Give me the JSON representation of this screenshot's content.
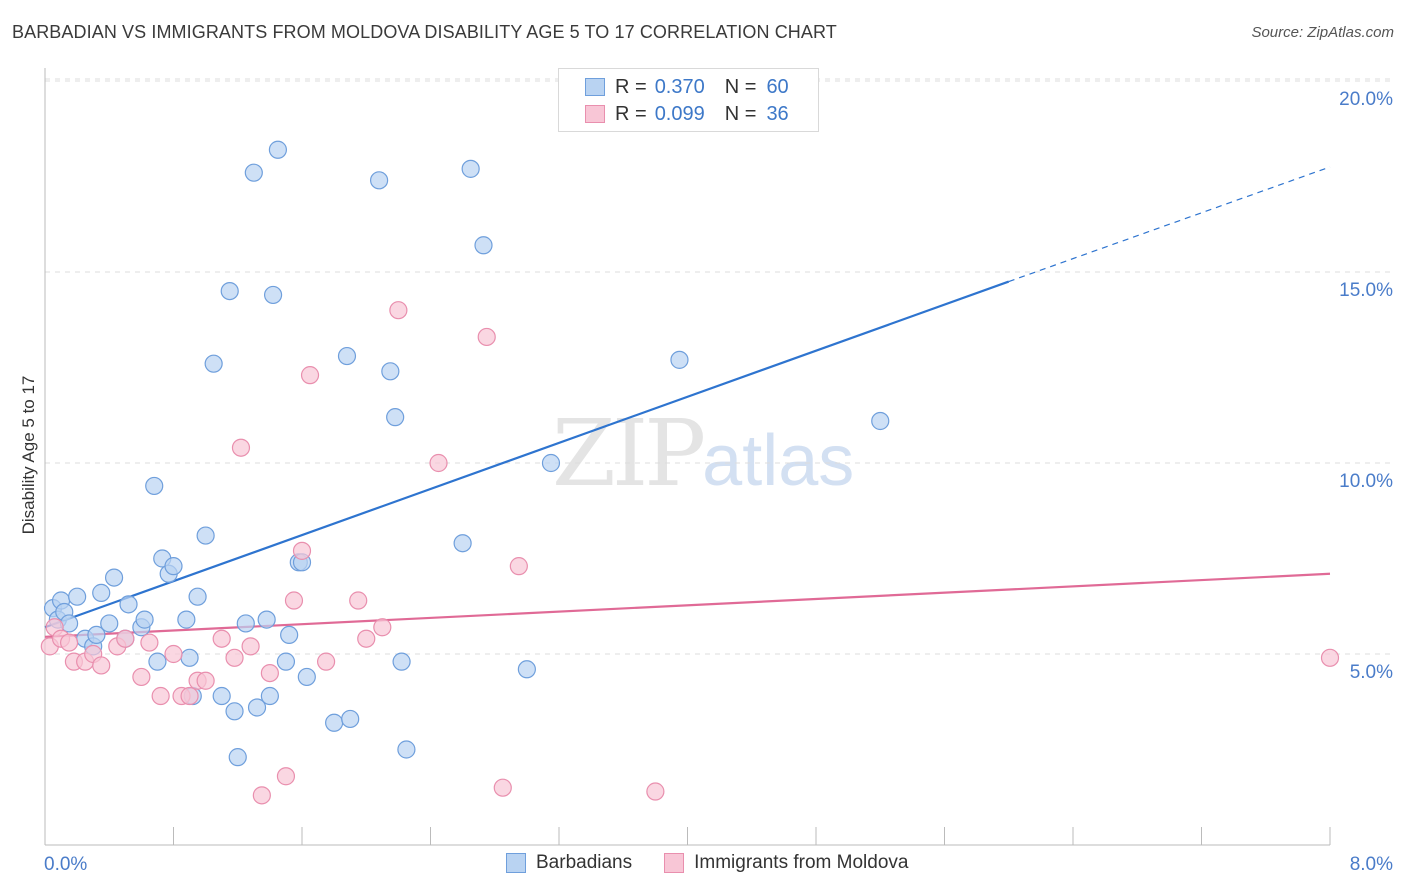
{
  "header": {
    "title": "BARBADIAN VS IMMIGRANTS FROM MOLDOVA DISABILITY AGE 5 TO 17 CORRELATION CHART",
    "source": "Source: ZipAtlas.com"
  },
  "watermark": {
    "zip": "ZIP",
    "atlas": "atlas"
  },
  "legend": {
    "rows": [
      {
        "r_label": "R =",
        "r_value": "0.370",
        "n_label": "N =",
        "n_value": "60"
      },
      {
        "r_label": "R =",
        "r_value": "0.099",
        "n_label": "N =",
        "n_value": "36"
      }
    ]
  },
  "bottom_legend": {
    "series1": "Barbadians",
    "series2": "Immigrants from Moldova"
  },
  "colors": {
    "blue_fill": "#b9d3f2",
    "blue_stroke": "#6f9fdc",
    "blue_line": "#2e74cf",
    "pink_fill": "#f8c6d6",
    "pink_stroke": "#e98fae",
    "pink_line": "#e06a96",
    "grid": "#dcdcdc",
    "tick_label": "#4a7cc9"
  },
  "chart_data": {
    "type": "scatter",
    "title": "BARBADIAN VS IMMIGRANTS FROM MOLDOVA DISABILITY AGE 5 TO 17 CORRELATION CHART",
    "xlabel": "",
    "ylabel": "Disability Age 5 to 17",
    "xlim": [
      0,
      8
    ],
    "ylim": [
      0,
      20
    ],
    "x_tick_labels": [
      "0.0%",
      "8.0%"
    ],
    "y_ticks": [
      5,
      10,
      15,
      20
    ],
    "y_tick_labels": [
      "5.0%",
      "10.0%",
      "15.0%",
      "20.0%"
    ],
    "grid": true,
    "legend_position": "top-center",
    "series": [
      {
        "name": "Barbadians",
        "r": 0.37,
        "n": 60,
        "trend": {
          "x0": 0.0,
          "y0": 5.7,
          "x1": 6.0,
          "y1": 14.75,
          "dash_to_x": 8.0,
          "dash_to_y": 17.75
        },
        "points": [
          [
            0.05,
            6.2
          ],
          [
            0.08,
            5.9
          ],
          [
            0.1,
            6.4
          ],
          [
            0.12,
            6.1
          ],
          [
            0.15,
            5.8
          ],
          [
            0.2,
            6.5
          ],
          [
            0.25,
            5.4
          ],
          [
            0.3,
            5.2
          ],
          [
            0.32,
            5.5
          ],
          [
            0.35,
            6.6
          ],
          [
            0.4,
            5.8
          ],
          [
            0.43,
            7.0
          ],
          [
            0.5,
            5.4
          ],
          [
            0.52,
            6.3
          ],
          [
            0.6,
            5.7
          ],
          [
            0.62,
            5.9
          ],
          [
            0.68,
            9.4
          ],
          [
            0.7,
            4.8
          ],
          [
            0.73,
            7.5
          ],
          [
            0.77,
            7.1
          ],
          [
            0.8,
            7.3
          ],
          [
            0.88,
            5.9
          ],
          [
            0.9,
            4.9
          ],
          [
            0.92,
            3.9
          ],
          [
            0.95,
            6.5
          ],
          [
            1.0,
            8.1
          ],
          [
            1.05,
            12.6
          ],
          [
            1.1,
            3.9
          ],
          [
            1.15,
            14.5
          ],
          [
            1.18,
            3.5
          ],
          [
            1.2,
            2.3
          ],
          [
            1.25,
            5.8
          ],
          [
            1.3,
            17.6
          ],
          [
            1.32,
            3.6
          ],
          [
            1.38,
            5.9
          ],
          [
            1.4,
            3.9
          ],
          [
            1.42,
            14.4
          ],
          [
            1.45,
            18.2
          ],
          [
            1.5,
            4.8
          ],
          [
            1.52,
            5.5
          ],
          [
            1.58,
            7.4
          ],
          [
            1.6,
            7.4
          ],
          [
            1.63,
            4.4
          ],
          [
            1.8,
            3.2
          ],
          [
            1.9,
            3.3
          ],
          [
            1.88,
            12.8
          ],
          [
            2.08,
            17.4
          ],
          [
            2.15,
            12.4
          ],
          [
            2.18,
            11.2
          ],
          [
            2.22,
            4.8
          ],
          [
            2.25,
            2.5
          ],
          [
            2.6,
            7.9
          ],
          [
            2.65,
            17.7
          ],
          [
            2.73,
            15.7
          ],
          [
            3.0,
            4.6
          ],
          [
            3.15,
            10.0
          ],
          [
            3.95,
            12.7
          ],
          [
            5.2,
            11.1
          ]
        ]
      },
      {
        "name": "Immigrants from Moldova",
        "r": 0.099,
        "n": 36,
        "trend": {
          "x0": 0.0,
          "y0": 5.45,
          "x1": 8.0,
          "y1": 7.1
        },
        "points": [
          [
            0.03,
            5.2
          ],
          [
            0.06,
            5.7
          ],
          [
            0.1,
            5.4
          ],
          [
            0.15,
            5.3
          ],
          [
            0.18,
            4.8
          ],
          [
            0.25,
            4.8
          ],
          [
            0.3,
            5.0
          ],
          [
            0.35,
            4.7
          ],
          [
            0.45,
            5.2
          ],
          [
            0.5,
            5.4
          ],
          [
            0.6,
            4.4
          ],
          [
            0.65,
            5.3
          ],
          [
            0.72,
            3.9
          ],
          [
            0.8,
            5.0
          ],
          [
            0.85,
            3.9
          ],
          [
            0.9,
            3.9
          ],
          [
            0.95,
            4.3
          ],
          [
            1.0,
            4.3
          ],
          [
            1.1,
            5.4
          ],
          [
            1.18,
            4.9
          ],
          [
            1.22,
            10.4
          ],
          [
            1.28,
            5.2
          ],
          [
            1.35,
            1.3
          ],
          [
            1.4,
            4.5
          ],
          [
            1.5,
            1.8
          ],
          [
            1.55,
            6.4
          ],
          [
            1.6,
            7.7
          ],
          [
            1.65,
            12.3
          ],
          [
            1.75,
            4.8
          ],
          [
            1.95,
            6.4
          ],
          [
            2.0,
            5.4
          ],
          [
            2.1,
            5.7
          ],
          [
            2.2,
            14.0
          ],
          [
            2.45,
            10.0
          ],
          [
            2.75,
            13.3
          ],
          [
            2.85,
            1.5
          ],
          [
            2.95,
            7.3
          ],
          [
            3.8,
            1.4
          ],
          [
            8.0,
            4.9
          ]
        ]
      }
    ]
  }
}
